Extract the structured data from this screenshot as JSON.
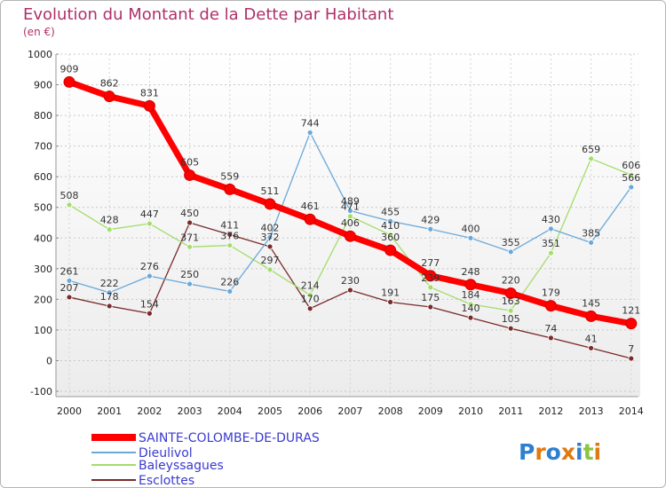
{
  "chart_data": {
    "type": "line",
    "title": "Evolution du Montant de la Dette par Habitant",
    "subtitle": "(en €)",
    "xlabel": "",
    "ylabel": "",
    "ylim": [
      -100,
      1000
    ],
    "yticks": [
      -100,
      0,
      100,
      200,
      300,
      400,
      500,
      600,
      700,
      800,
      900,
      1000
    ],
    "x": [
      "2000",
      "2001",
      "2002",
      "2003",
      "2004",
      "2005",
      "2006",
      "2007",
      "2008",
      "2009",
      "2010",
      "2011",
      "2012",
      "2013",
      "2014"
    ],
    "grid": "horizontal dashed",
    "legend": "bottom-left",
    "series": [
      {
        "name": "SAINTE-COLOMBE-DE-DURAS",
        "color": "#ff0000",
        "values": [
          909,
          862,
          831,
          605,
          559,
          511,
          461,
          406,
          360,
          277,
          248,
          220,
          179,
          145,
          121
        ]
      },
      {
        "name": "Dieulivol",
        "color": "#6aa8d8",
        "values": [
          261,
          222,
          276,
          250,
          226,
          402,
          744,
          489,
          455,
          429,
          400,
          355,
          430,
          385,
          566
        ]
      },
      {
        "name": "Baleyssagues",
        "color": "#a3dd6a",
        "values": [
          508,
          428,
          447,
          371,
          376,
          297,
          214,
          471,
          410,
          239,
          184,
          163,
          351,
          659,
          606
        ]
      },
      {
        "name": "Esclottes",
        "color": "#7a2a2a",
        "values": [
          207,
          178,
          154,
          450,
          411,
          372,
          170,
          230,
          191,
          175,
          140,
          105,
          74,
          41,
          7
        ]
      }
    ]
  },
  "branding": {
    "logo_text": "Proxiti"
  }
}
